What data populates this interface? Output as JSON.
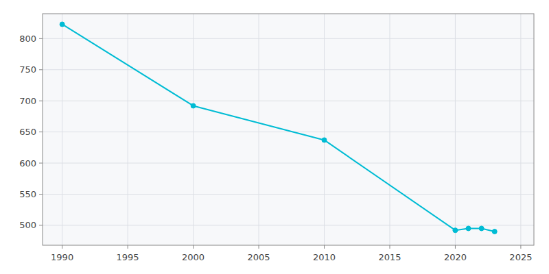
{
  "chart_data": {
    "type": "line",
    "x": [
      1990,
      2000,
      2010,
      2020,
      2021,
      2022,
      2023
    ],
    "values": [
      823,
      692,
      637,
      492,
      495,
      495,
      490
    ],
    "color": "#00bcd4",
    "marker": "circle",
    "xlim": [
      1988.5,
      2026
    ],
    "ylim": [
      468,
      840
    ],
    "xticks": [
      1990,
      1995,
      2000,
      2005,
      2010,
      2015,
      2020,
      2025
    ],
    "yticks": [
      500,
      550,
      600,
      650,
      700,
      750,
      800
    ],
    "grid": true
  }
}
